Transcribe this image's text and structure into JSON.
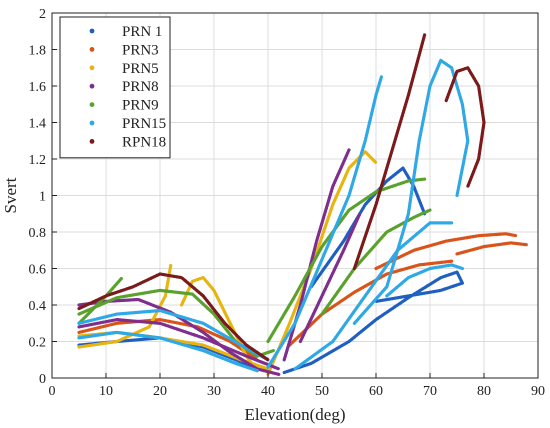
{
  "chart_data": {
    "type": "scatter",
    "xlabel": "Elevation(deg)",
    "ylabel": "Svert",
    "xlim": [
      0,
      90
    ],
    "ylim": [
      0,
      2
    ],
    "xticks": [
      0,
      10,
      20,
      30,
      40,
      50,
      60,
      70,
      80,
      90
    ],
    "yticks": [
      0,
      0.2,
      0.4,
      0.6,
      0.8,
      1,
      1.2,
      1.4,
      1.6,
      1.8,
      2
    ],
    "ytick_labels": [
      "0",
      "0.2",
      "0.4",
      "0.6",
      "0.8",
      "1",
      "1.2",
      "1.4",
      "1.6",
      "1.8",
      "2"
    ],
    "grid": true,
    "legend_position": "top-left",
    "series": [
      {
        "name": "PRN 1",
        "color": "#1f5fbf",
        "tracks": [
          [
            [
              5,
              0.18
            ],
            [
              12,
              0.2
            ],
            [
              20,
              0.22
            ],
            [
              28,
              0.17
            ],
            [
              34,
              0.1
            ],
            [
              38,
              0.05
            ]
          ],
          [
            [
              43,
              0.03
            ],
            [
              48,
              0.08
            ],
            [
              55,
              0.2
            ],
            [
              60,
              0.32
            ],
            [
              66,
              0.44
            ],
            [
              72,
              0.55
            ],
            [
              75,
              0.58
            ],
            [
              76,
              0.52
            ],
            [
              72,
              0.48
            ],
            [
              66,
              0.45
            ],
            [
              60,
              0.42
            ]
          ],
          [
            [
              48,
              0.5
            ],
            [
              54,
              0.75
            ],
            [
              58,
              0.95
            ],
            [
              62,
              1.08
            ],
            [
              65,
              1.15
            ],
            [
              67,
              1.05
            ],
            [
              69,
              0.9
            ]
          ]
        ]
      },
      {
        "name": "PRN3",
        "color": "#d9541a",
        "tracks": [
          [
            [
              5,
              0.25
            ],
            [
              12,
              0.3
            ],
            [
              20,
              0.32
            ],
            [
              27,
              0.28
            ],
            [
              33,
              0.2
            ],
            [
              38,
              0.1
            ]
          ],
          [
            [
              44,
              0.18
            ],
            [
              50,
              0.35
            ],
            [
              56,
              0.47
            ],
            [
              62,
              0.57
            ],
            [
              68,
              0.62
            ],
            [
              74,
              0.64
            ]
          ],
          [
            [
              60,
              0.6
            ],
            [
              67,
              0.7
            ],
            [
              73,
              0.75
            ],
            [
              79,
              0.78
            ],
            [
              84,
              0.79
            ],
            [
              86,
              0.78
            ]
          ],
          [
            [
              75,
              0.68
            ],
            [
              80,
              0.72
            ],
            [
              85,
              0.74
            ],
            [
              88,
              0.73
            ]
          ]
        ]
      },
      {
        "name": "PRN5",
        "color": "#e8b410",
        "tracks": [
          [
            [
              5,
              0.17
            ],
            [
              12,
              0.2
            ],
            [
              18,
              0.28
            ],
            [
              21,
              0.45
            ],
            [
              22,
              0.62
            ]
          ],
          [
            [
              24,
              0.4
            ],
            [
              26,
              0.53
            ],
            [
              28,
              0.55
            ],
            [
              30,
              0.48
            ],
            [
              33,
              0.3
            ],
            [
              36,
              0.12
            ],
            [
              38,
              0.04
            ]
          ],
          [
            [
              40,
              0.02
            ],
            [
              44,
              0.3
            ],
            [
              48,
              0.6
            ],
            [
              52,
              0.95
            ],
            [
              55,
              1.15
            ],
            [
              58,
              1.24
            ],
            [
              60,
              1.18
            ]
          ],
          [
            [
              5,
              0.23
            ],
            [
              12,
              0.25
            ],
            [
              20,
              0.22
            ],
            [
              28,
              0.18
            ],
            [
              35,
              0.1
            ],
            [
              40,
              0.05
            ]
          ]
        ]
      },
      {
        "name": "PRN8",
        "color": "#7e2f8e",
        "tracks": [
          [
            [
              5,
              0.4
            ],
            [
              10,
              0.42
            ],
            [
              16,
              0.43
            ],
            [
              22,
              0.36
            ],
            [
              28,
              0.25
            ],
            [
              33,
              0.14
            ],
            [
              38,
              0.05
            ],
            [
              42,
              0.02
            ]
          ],
          [
            [
              43,
              0.1
            ],
            [
              46,
              0.4
            ],
            [
              49,
              0.75
            ],
            [
              52,
              1.05
            ],
            [
              55,
              1.25
            ]
          ],
          [
            [
              46,
              0.2
            ],
            [
              50,
              0.45
            ],
            [
              54,
              0.7
            ],
            [
              57,
              0.9
            ]
          ],
          [
            [
              5,
              0.28
            ],
            [
              12,
              0.32
            ],
            [
              20,
              0.3
            ],
            [
              28,
              0.22
            ],
            [
              36,
              0.12
            ],
            [
              42,
              0.05
            ]
          ]
        ]
      },
      {
        "name": "PRN9",
        "color": "#5aa12e",
        "tracks": [
          [
            [
              5,
              0.3
            ],
            [
              10,
              0.45
            ],
            [
              13,
              0.55
            ]
          ],
          [
            [
              5,
              0.35
            ],
            [
              12,
              0.44
            ],
            [
              20,
              0.48
            ],
            [
              26,
              0.46
            ],
            [
              30,
              0.35
            ],
            [
              34,
              0.2
            ],
            [
              38,
              0.12
            ],
            [
              41,
              0.15
            ]
          ],
          [
            [
              40,
              0.2
            ],
            [
              45,
              0.45
            ],
            [
              50,
              0.72
            ],
            [
              55,
              0.92
            ],
            [
              60,
              1.02
            ],
            [
              66,
              1.08
            ],
            [
              69,
              1.09
            ]
          ],
          [
            [
              50,
              0.35
            ],
            [
              56,
              0.6
            ],
            [
              62,
              0.8
            ],
            [
              67,
              0.88
            ],
            [
              70,
              0.92
            ]
          ]
        ]
      },
      {
        "name": "PRN15",
        "color": "#2fa8e6",
        "tracks": [
          [
            [
              5,
              0.22
            ],
            [
              12,
              0.25
            ],
            [
              20,
              0.22
            ],
            [
              28,
              0.15
            ],
            [
              34,
              0.08
            ],
            [
              38,
              0.04
            ]
          ],
          [
            [
              40,
              0.06
            ],
            [
              45,
              0.3
            ],
            [
              50,
              0.65
            ],
            [
              55,
              1.0
            ],
            [
              58,
              1.3
            ],
            [
              60,
              1.55
            ],
            [
              61,
              1.65
            ]
          ],
          [
            [
              56,
              0.3
            ],
            [
              62,
              0.5
            ],
            [
              66,
              0.9
            ],
            [
              68,
              1.3
            ],
            [
              70,
              1.6
            ],
            [
              72,
              1.74
            ],
            [
              74,
              1.7
            ],
            [
              76,
              1.5
            ],
            [
              77,
              1.3
            ],
            [
              75,
              1.0
            ]
          ],
          [
            [
              62,
              0.45
            ],
            [
              66,
              0.55
            ],
            [
              70,
              0.6
            ],
            [
              74,
              0.62
            ],
            [
              76,
              0.6
            ]
          ],
          [
            [
              5,
              0.3
            ],
            [
              12,
              0.35
            ],
            [
              20,
              0.37
            ],
            [
              28,
              0.3
            ],
            [
              35,
              0.18
            ],
            [
              40,
              0.1
            ]
          ],
          [
            [
              45,
              0.05
            ],
            [
              52,
              0.2
            ],
            [
              58,
              0.45
            ],
            [
              64,
              0.7
            ],
            [
              70,
              0.85
            ],
            [
              74,
              0.85
            ]
          ]
        ]
      },
      {
        "name": "RPN18",
        "color": "#7a1a1a",
        "tracks": [
          [
            [
              5,
              0.38
            ],
            [
              10,
              0.45
            ],
            [
              15,
              0.5
            ],
            [
              20,
              0.57
            ],
            [
              24,
              0.55
            ],
            [
              28,
              0.45
            ],
            [
              32,
              0.3
            ],
            [
              36,
              0.18
            ],
            [
              40,
              0.1
            ]
          ],
          [
            [
              56,
              0.6
            ],
            [
              60,
              0.95
            ],
            [
              63,
              1.25
            ],
            [
              66,
              1.55
            ],
            [
              69,
              1.88
            ]
          ],
          [
            [
              73,
              1.52
            ],
            [
              75,
              1.68
            ],
            [
              77,
              1.7
            ],
            [
              79,
              1.6
            ],
            [
              80,
              1.4
            ],
            [
              79,
              1.2
            ],
            [
              77,
              1.05
            ]
          ]
        ]
      }
    ]
  }
}
